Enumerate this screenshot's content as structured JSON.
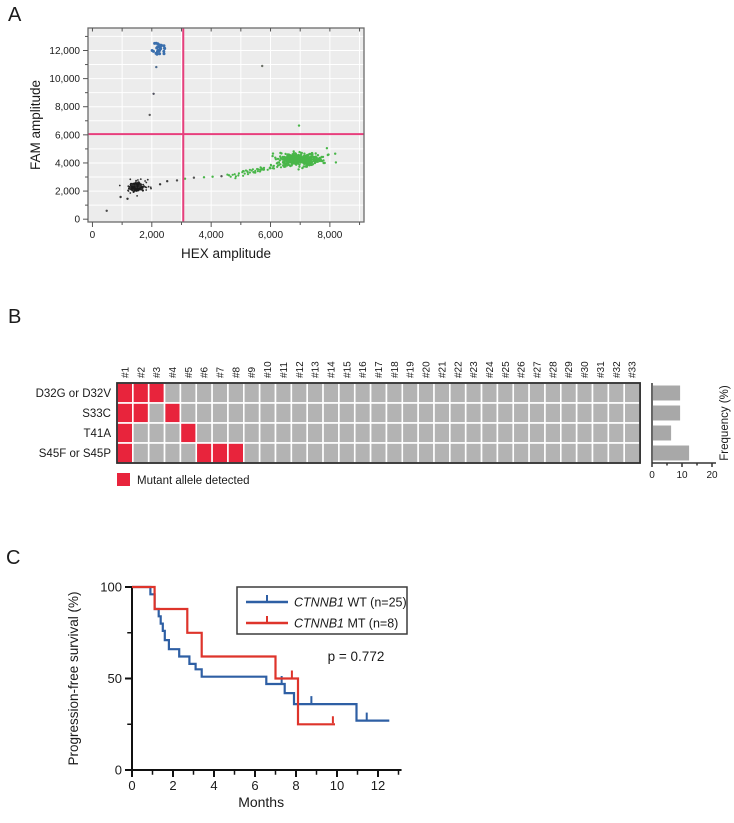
{
  "panels": {
    "a": {
      "label": "A"
    },
    "b": {
      "label": "B"
    },
    "c": {
      "label": "C"
    }
  },
  "chart_data": [
    {
      "id": "ddpcr_2d_amplitude_plot",
      "type": "scatter",
      "xlabel": "HEX amplitude",
      "ylabel": "FAM amplitude",
      "xlim": [
        -150,
        9150
      ],
      "ylim": [
        -200,
        13600
      ],
      "x_ticks": [
        {
          "value": 0,
          "label": "0"
        },
        {
          "value": 2000,
          "label": "2,000"
        },
        {
          "value": 4000,
          "label": "4,000"
        },
        {
          "value": 6000,
          "label": "6,000"
        },
        {
          "value": 8000,
          "label": "8,000"
        }
      ],
      "y_ticks": [
        {
          "value": 0,
          "label": "0"
        },
        {
          "value": 2000,
          "label": "2,000"
        },
        {
          "value": 4000,
          "label": "4,000"
        },
        {
          "value": 6000,
          "label": "6,000"
        },
        {
          "value": 8000,
          "label": "8,000"
        },
        {
          "value": 10000,
          "label": "10,000"
        },
        {
          "value": 12000,
          "label": "12,000"
        }
      ],
      "minor_tick_step": 1000,
      "grid_step": 1000,
      "plot_bg": "#ececec",
      "grid_color": "#ffffff",
      "border_color": "#6b6b6b",
      "threshold": {
        "x": 3060,
        "y": 6050,
        "color": "#e73e7c"
      },
      "clusters": [
        {
          "name": "double-negative-droplets",
          "color": "#1b1b1b",
          "count": 300,
          "cx": 1450,
          "cy": 2300,
          "sx": 95,
          "sy": 110,
          "r": 1.1
        },
        {
          "name": "double-negative-halo",
          "color": "#2e2e2e",
          "count": 40,
          "cx": 1520,
          "cy": 2330,
          "sx": 280,
          "sy": 230,
          "r": 0.9
        },
        {
          "name": "fam-positive-mutant-droplets",
          "color": "#3a6fad",
          "count": 26,
          "cx": 2190,
          "cy": 12150,
          "sx": 130,
          "sy": 300,
          "r": 1.5
        },
        {
          "name": "hex-positive-wildtype-core",
          "color": "#49b649",
          "count": 420,
          "cx": 6980,
          "cy": 4230,
          "sx": 360,
          "sy": 220,
          "r": 1.2
        },
        {
          "name": "hex-positive-rain",
          "color": "#49b649",
          "count": 60,
          "r": 1.1,
          "tail": {
            "x1": 4750,
            "y1": 3080,
            "x2": 6450,
            "y2": 3900,
            "jx": 130,
            "jy": 90
          }
        }
      ],
      "extra_points": [
        [
          480,
          600,
          "#4a4a4a"
        ],
        [
          950,
          1580,
          "#3a3a3a"
        ],
        [
          1180,
          1450,
          "#333333"
        ],
        [
          2280,
          2480,
          "#333333"
        ],
        [
          2520,
          2700,
          "#3a3a3a"
        ],
        [
          2850,
          2760,
          "#4c4c4c"
        ],
        [
          3120,
          2880,
          "#49b649"
        ],
        [
          3420,
          2950,
          "#555555"
        ],
        [
          3760,
          2980,
          "#49b649"
        ],
        [
          4050,
          3020,
          "#49b649"
        ],
        [
          4350,
          3060,
          "#555555"
        ],
        [
          4600,
          3120,
          "#49b649"
        ],
        [
          2150,
          10820,
          "#4f6d8f"
        ],
        [
          2060,
          8920,
          "#52525f"
        ],
        [
          1930,
          7420,
          "#5a5a5a"
        ],
        [
          5720,
          10900,
          "#6a6f66"
        ],
        [
          6960,
          6660,
          "#49b649"
        ],
        [
          8180,
          4660,
          "#49b649"
        ],
        [
          7900,
          5050,
          "#49b649"
        ]
      ]
    },
    {
      "id": "ctnnb1_mutation_matrix",
      "type": "heatmap",
      "columns": [
        "#1",
        "#2",
        "#3",
        "#4",
        "#5",
        "#6",
        "#7",
        "#8",
        "#9",
        "#10",
        "#11",
        "#12",
        "#13",
        "#14",
        "#15",
        "#16",
        "#17",
        "#18",
        "#19",
        "#20",
        "#21",
        "#22",
        "#23",
        "#24",
        "#25",
        "#26",
        "#27",
        "#28",
        "#29",
        "#30",
        "#31",
        "#32",
        "#33"
      ],
      "rows": [
        {
          "label": "D32G or D32V",
          "mutant_columns": [
            "#1",
            "#2",
            "#3"
          ],
          "frequency_pct": 9.1
        },
        {
          "label": "S33C",
          "mutant_columns": [
            "#1",
            "#2",
            "#4"
          ],
          "frequency_pct": 9.1
        },
        {
          "label": "T41A",
          "mutant_columns": [
            "#1",
            "#5"
          ],
          "frequency_pct": 6.1
        },
        {
          "label": "S45F or S45P",
          "mutant_columns": [
            "#1",
            "#6",
            "#7",
            "#8"
          ],
          "frequency_pct": 12.1
        }
      ],
      "colors": {
        "default": "#b3b3b3",
        "mutant": "#e8243c",
        "bar": "#a8a8a8",
        "border": "#2d2d2d"
      },
      "legend_label": "Mutant allele detected",
      "frequency_axis": {
        "label": "Frequency (%)",
        "ticks": [
          0,
          10,
          20
        ],
        "minor_ticks": [
          5,
          15
        ],
        "max": 20
      }
    },
    {
      "id": "progression_free_survival_km",
      "type": "line",
      "xlabel": "Months",
      "ylabel": "Progression-free survival (%)",
      "xlim": [
        0,
        13.1
      ],
      "ylim": [
        0,
        100
      ],
      "x_ticks": [
        0,
        2,
        4,
        6,
        8,
        10,
        12
      ],
      "x_minor_ticks": [
        1,
        3,
        5,
        7,
        9,
        11,
        13
      ],
      "y_ticks": [
        0,
        50,
        100
      ],
      "y_minor_ticks": [
        25,
        75
      ],
      "annotation": "p = 0.772",
      "series": [
        {
          "name": "CTNNB1 WT (n=25)",
          "gene": "CTNNB1",
          "suffix": " WT (n=25)",
          "color": "#2e5fa4",
          "steps": [
            [
              0,
              100
            ],
            [
              0.9,
              96
            ],
            [
              1.1,
              88
            ],
            [
              1.3,
              84
            ],
            [
              1.4,
              80
            ],
            [
              1.5,
              76
            ],
            [
              1.6,
              71
            ],
            [
              1.8,
              66
            ],
            [
              2.3,
              62
            ],
            [
              2.8,
              58
            ],
            [
              3.1,
              55
            ],
            [
              3.4,
              51
            ],
            [
              6.55,
              47
            ],
            [
              7.45,
              42
            ],
            [
              7.9,
              36
            ],
            [
              10.95,
              27
            ]
          ],
          "end_x": 12.55,
          "censor_marks": [
            [
              7.3,
              47
            ],
            [
              8.75,
              36
            ],
            [
              11.45,
              27
            ]
          ]
        },
        {
          "name": "CTNNB1 MT (n=8)",
          "gene": "CTNNB1",
          "suffix": " MT (n=8)",
          "color": "#de342b",
          "steps": [
            [
              0,
              100
            ],
            [
              1.1,
              88
            ],
            [
              2.7,
              75
            ],
            [
              3.4,
              62
            ],
            [
              7.0,
              50
            ],
            [
              8.1,
              25
            ]
          ],
          "end_x": 9.9,
          "censor_marks": [
            [
              7.8,
              50
            ],
            [
              9.8,
              25
            ]
          ]
        }
      ]
    }
  ]
}
